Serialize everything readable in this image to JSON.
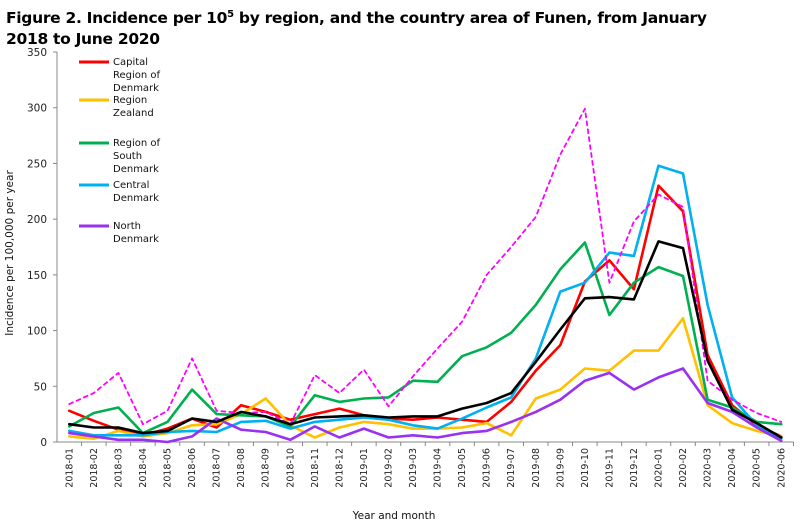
{
  "title": {
    "prefix": "Figure 2. Incidence per 10",
    "sup": "5",
    "suffix": " by region, and the country area of Funen, from January 2018 to June 2020"
  },
  "chart_data": {
    "type": "line",
    "xlabel": "Year and month",
    "ylabel": "Incidence per 100,000 per year",
    "ylim": [
      0,
      350
    ],
    "yticks": [
      0,
      50,
      100,
      150,
      200,
      250,
      300,
      350
    ],
    "grid": false,
    "legend_position": "top-left",
    "x": [
      "2018-01",
      "2018-02",
      "2018-03",
      "2018-04",
      "2018-05",
      "2018-06",
      "2018-07",
      "2018-08",
      "2018-09",
      "2018-10",
      "2018-11",
      "2018-12",
      "2019-01",
      "2019-02",
      "2019-03",
      "2019-04",
      "2019-05",
      "2019-06",
      "2019-07",
      "2019-08",
      "2019-09",
      "2019-10",
      "2019-11",
      "2019-12",
      "2020-01",
      "2020-02",
      "2020-03",
      "2020-04",
      "2020-05",
      "2020-06"
    ],
    "series": [
      {
        "name": "Capital Region of Denmark",
        "legend_lines": [
          "Capital",
          "Region of",
          "Denmark"
        ],
        "color": "#ff0000",
        "dash": false,
        "in_legend": true,
        "values": [
          28,
          19,
          11,
          6,
          12,
          21,
          13,
          33,
          27,
          20,
          25,
          30,
          24,
          21,
          20,
          22,
          20,
          18,
          36,
          64,
          87,
          144,
          163,
          137,
          230,
          207,
          78,
          33,
          15,
          5
        ]
      },
      {
        "name": "Region Zealand",
        "legend_lines": [
          "Region",
          "Zealand"
        ],
        "color": "#ffc000",
        "dash": false,
        "in_legend": true,
        "values": [
          5,
          3,
          10,
          5,
          8,
          15,
          16,
          25,
          39,
          15,
          4,
          13,
          18,
          16,
          12,
          12,
          13,
          17,
          6,
          39,
          47,
          66,
          64,
          82,
          82,
          111,
          33,
          17,
          10,
          5
        ]
      },
      {
        "name": "Region of South Denmark",
        "legend_lines": [
          "Region of",
          "South",
          "Denmark"
        ],
        "color": "#00b050",
        "dash": false,
        "in_legend": true,
        "values": [
          14,
          26,
          31,
          8,
          18,
          47,
          25,
          24,
          23,
          14,
          42,
          36,
          39,
          40,
          55,
          54,
          77,
          85,
          98,
          123,
          155,
          179,
          114,
          143,
          157,
          149,
          38,
          31,
          18,
          16
        ]
      },
      {
        "name": "Central Denmark",
        "legend_lines": [
          "Central",
          "Denmark"
        ],
        "color": "#00b0f0",
        "dash": false,
        "in_legend": true,
        "values": [
          10,
          6,
          6,
          6,
          9,
          10,
          9,
          18,
          19,
          12,
          18,
          20,
          22,
          20,
          15,
          12,
          21,
          31,
          40,
          75,
          135,
          143,
          170,
          167,
          248,
          241,
          123,
          40,
          15,
          3
        ]
      },
      {
        "name": "North Denmark",
        "legend_lines": [
          "North",
          "Denmark"
        ],
        "color": "#9932f0",
        "dash": false,
        "in_legend": true,
        "values": [
          8,
          5,
          2,
          2,
          0,
          5,
          21,
          11,
          9,
          2,
          14,
          4,
          12,
          4,
          6,
          4,
          8,
          10,
          18,
          27,
          38,
          55,
          62,
          47,
          58,
          66,
          35,
          27,
          13,
          1
        ]
      },
      {
        "name": "Funen",
        "color": "#ff00ff",
        "dash": true,
        "in_legend": false,
        "values": [
          34,
          44,
          62,
          16,
          28,
          75,
          28,
          26,
          27,
          16,
          60,
          44,
          65,
          32,
          59,
          84,
          108,
          150,
          175,
          202,
          258,
          299,
          143,
          198,
          222,
          211,
          55,
          38,
          26,
          18
        ]
      },
      {
        "name": "Denmark",
        "color": "#000000",
        "dash": false,
        "in_legend": false,
        "values": [
          16,
          13,
          13,
          8,
          10,
          21,
          18,
          27,
          23,
          16,
          22,
          23,
          24,
          22,
          23,
          23,
          30,
          35,
          44,
          72,
          101,
          129,
          130,
          128,
          180,
          174,
          73,
          29,
          17,
          4
        ]
      }
    ]
  }
}
